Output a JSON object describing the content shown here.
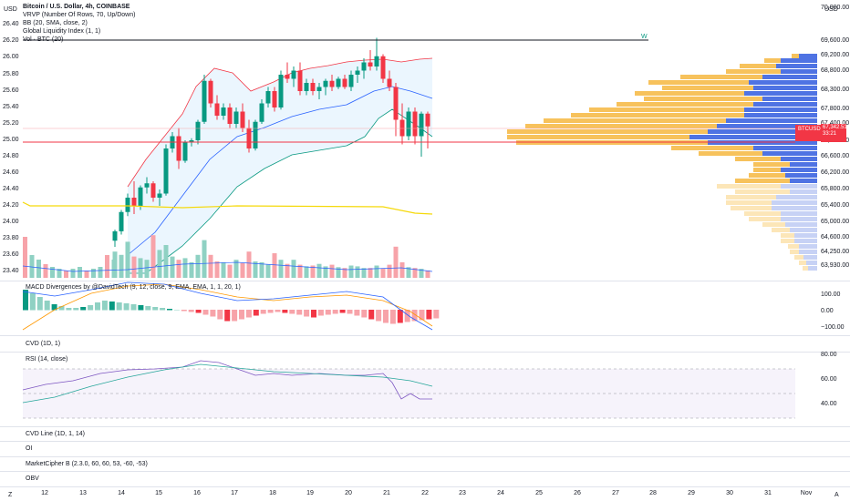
{
  "header": {
    "title": "Bitcoin / U.S. Dollar, 4h, COINBASE",
    "indicators": [
      "VRVP (Number Of Rows, 70, Up/Down)",
      "BB (20, SMA, close, 2)",
      "Global Liquidity Index (1, 1)",
      "Vol · BTC (20)"
    ]
  },
  "corners": {
    "left_currency": "USD",
    "right_currency": "USD",
    "bottom_left": "Z",
    "bottom_right": "A"
  },
  "left_axis": [
    "26.40",
    "26.20",
    "26.00",
    "25.80",
    "25.60",
    "25.40",
    "25.20",
    "25.00",
    "24.80",
    "24.60",
    "24.40",
    "24.20",
    "24.00",
    "23.80",
    "23.60",
    "23.40"
  ],
  "right_axis": [
    "70,000.00",
    "69,600.00",
    "69,200.00",
    "68,800.00",
    "68,300.00",
    "67,800.00",
    "67,400.00",
    "67,000.00",
    "66,600.00",
    "66,200.00",
    "65,800.00",
    "65,400.00",
    "65,000.00",
    "64,600.00",
    "64,250.00",
    "63,930.00"
  ],
  "price_label": {
    "symbol": "BTCUSD",
    "price": "67,342.51",
    "countdown": "33:21"
  },
  "w_marker": "W",
  "panes": {
    "macd": {
      "label": "MACD Divergences by @DavidTech (9, 12, close, 9, EMA, EMA, 1, 1, 20, 1)",
      "ticks": [
        "100.00",
        "0.00",
        "−100.00"
      ]
    },
    "cvd": {
      "label": "CVD (1D, 1)"
    },
    "rsi": {
      "label": "RSI (14, close)",
      "ticks": [
        "80.00",
        "60.00",
        "40.00"
      ]
    },
    "cvd_line": {
      "label": "CVD Line (1D, 1, 14)"
    },
    "oi": {
      "label": "OI"
    },
    "marketcipher": {
      "label": "MarketCipher B (2.3.0, 60, 60, 53, -60, -53)"
    },
    "obv": {
      "label": "OBV"
    }
  },
  "x_axis": [
    "12",
    "13",
    "14",
    "15",
    "16",
    "17",
    "18",
    "19",
    "20",
    "21",
    "22",
    "23",
    "24",
    "25",
    "26",
    "27",
    "28",
    "29",
    "30",
    "31",
    "Nov"
  ],
  "colors": {
    "up": "#089981",
    "down": "#f23645",
    "bb": "#2962ff",
    "bb_fill": "#e3f2fd",
    "vp_up": "#f7c25c",
    "vp_down": "#4f73e3",
    "liquidity": "#f5d90a"
  },
  "chart_data": {
    "type": "candlestick",
    "x": [
      "14 00:00",
      "14 04:00",
      "14 08:00",
      "14 12:00",
      "14 16:00",
      "14 20:00",
      "15 00:00",
      "15 04:00",
      "15 08:00",
      "15 12:00",
      "15 16:00",
      "15 20:00",
      "16 00:00",
      "16 04:00",
      "16 08:00",
      "16 12:00",
      "16 16:00",
      "16 20:00",
      "17 00:00",
      "17 04:00",
      "17 08:00",
      "17 12:00",
      "17 16:00",
      "17 20:00",
      "18 00:00",
      "18 04:00",
      "18 08:00",
      "18 12:00",
      "18 16:00",
      "18 20:00",
      "19 00:00",
      "19 04:00",
      "19 08:00",
      "19 12:00",
      "19 16:00",
      "19 20:00",
      "20 00:00",
      "20 04:00",
      "20 08:00",
      "20 12:00",
      "20 16:00",
      "20 20:00",
      "21 00:00",
      "21 04:00",
      "21 08:00",
      "21 12:00",
      "21 16:00",
      "21 20:00",
      "22 00:00",
      "22 04:00"
    ],
    "ohlc": [
      [
        64550,
        64820,
        64400,
        64780
      ],
      [
        64780,
        65300,
        64700,
        65250
      ],
      [
        65250,
        65700,
        65150,
        65600
      ],
      [
        65600,
        66000,
        65200,
        65400
      ],
      [
        65400,
        65900,
        65300,
        65850
      ],
      [
        65850,
        66100,
        65700,
        65950
      ],
      [
        65950,
        66000,
        65500,
        65600
      ],
      [
        65600,
        65800,
        65400,
        65700
      ],
      [
        65700,
        66900,
        65650,
        66800
      ],
      [
        66800,
        67200,
        66700,
        67100
      ],
      [
        67100,
        67300,
        66300,
        66500
      ],
      [
        66500,
        67000,
        66450,
        66950
      ],
      [
        66950,
        67050,
        66850,
        67000
      ],
      [
        67000,
        67500,
        66900,
        67450
      ],
      [
        67450,
        68600,
        67400,
        68450
      ],
      [
        68450,
        68500,
        67800,
        67900
      ],
      [
        67900,
        68100,
        67500,
        67600
      ],
      [
        67600,
        67900,
        67500,
        67800
      ],
      [
        67800,
        67900,
        67300,
        67400
      ],
      [
        67400,
        67800,
        67300,
        67700
      ],
      [
        67700,
        67900,
        67200,
        67300
      ],
      [
        67300,
        67500,
        66700,
        66800
      ],
      [
        66800,
        67500,
        66750,
        67450
      ],
      [
        67450,
        68000,
        67400,
        67900
      ],
      [
        67900,
        68300,
        67800,
        68200
      ],
      [
        68200,
        68300,
        67700,
        67800
      ],
      [
        67800,
        68700,
        67750,
        68600
      ],
      [
        68600,
        68900,
        68400,
        68500
      ],
      [
        68500,
        68800,
        68300,
        68700
      ],
      [
        68700,
        68900,
        68100,
        68200
      ],
      [
        68200,
        68500,
        68100,
        68400
      ],
      [
        68400,
        68500,
        68100,
        68200
      ],
      [
        68200,
        68400,
        68000,
        68300
      ],
      [
        68300,
        68500,
        68100,
        68450
      ],
      [
        68450,
        68600,
        68200,
        68300
      ],
      [
        68300,
        68550,
        68250,
        68500
      ],
      [
        68500,
        68600,
        68250,
        68300
      ],
      [
        68300,
        68700,
        68200,
        68600
      ],
      [
        68600,
        68800,
        68400,
        68700
      ],
      [
        68700,
        69000,
        68500,
        68900
      ],
      [
        68900,
        69200,
        68700,
        68800
      ],
      [
        68800,
        69500,
        68700,
        69050
      ],
      [
        69050,
        69100,
        68400,
        68500
      ],
      [
        68500,
        68700,
        68200,
        68300
      ],
      [
        68300,
        68400,
        67100,
        67500
      ],
      [
        67500,
        67900,
        66900,
        67100
      ],
      [
        67100,
        67800,
        67000,
        67700
      ],
      [
        67700,
        67800,
        66900,
        67100
      ],
      [
        67100,
        67700,
        66600,
        67650
      ],
      [
        67650,
        67700,
        66800,
        67340
      ]
    ],
    "volume": [
      160,
      140,
      220,
      130,
      120,
      110,
      260,
      170,
      200,
      130,
      110,
      120,
      95,
      140,
      230,
      140,
      100,
      95,
      80,
      110,
      90,
      160,
      100,
      95,
      80,
      150,
      110,
      85,
      110,
      80,
      70,
      75,
      85,
      70,
      80,
      65,
      60,
      75,
      70,
      60,
      60,
      75,
      55,
      80,
      190,
      95,
      65,
      60,
      55,
      45
    ],
    "vp_levels": [
      "69,600",
      "69,200",
      "68,800",
      "68,300",
      "67,800",
      "67,400",
      "67,000",
      "66,600",
      "66,200",
      "65,800",
      "65,400",
      "65,000",
      "64,600"
    ],
    "rsi_ticks": [
      80,
      60,
      40
    ],
    "macd_ticks": [
      100,
      0,
      -100
    ]
  }
}
